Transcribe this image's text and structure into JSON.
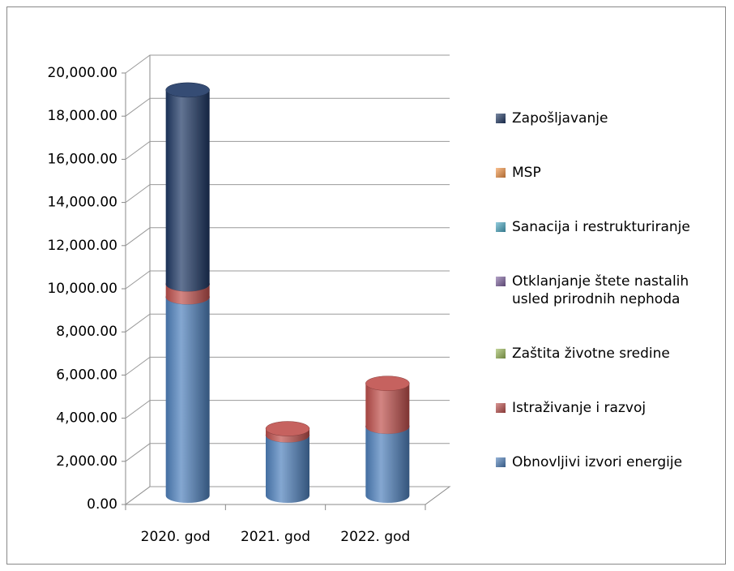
{
  "chart_data": {
    "type": "bar3d_stacked",
    "categories": [
      "2020. god",
      "2021. god",
      "2022. god"
    ],
    "series": [
      {
        "name": "Obnovljivi izvori energije",
        "color": "#4f81bd",
        "values": [
          9200,
          2800,
          3200
        ]
      },
      {
        "name": "Istraživanje i razvoj",
        "color": "#c0504d",
        "values": [
          600,
          300,
          2000
        ]
      },
      {
        "name": "Zaštita životne sredine",
        "color": "#9bbb59",
        "values": [
          0,
          0,
          0
        ]
      },
      {
        "name": "Otklanjanje štete nastalih usled prirodnih nephoda",
        "color": "#8064a2",
        "values": [
          0,
          0,
          0
        ]
      },
      {
        "name": "Sanacija i restrukturiranje",
        "color": "#4bacc6",
        "values": [
          0,
          0,
          0
        ]
      },
      {
        "name": "MSP",
        "color": "#f79646",
        "values": [
          0,
          0,
          0
        ]
      },
      {
        "name": "Zapošljavanje",
        "color": "#1f3864",
        "values": [
          9000,
          0,
          0
        ]
      }
    ],
    "ylim": [
      0,
      20000
    ],
    "yticks": [
      {
        "value": 0,
        "label": "0.00"
      },
      {
        "value": 2000,
        "label": "2,000.00"
      },
      {
        "value": 4000,
        "label": "4,000.00"
      },
      {
        "value": 6000,
        "label": "6,000.00"
      },
      {
        "value": 8000,
        "label": "8,000.00"
      },
      {
        "value": 10000,
        "label": "10,000.00"
      },
      {
        "value": 12000,
        "label": "12,000.00"
      },
      {
        "value": 14000,
        "label": "14,000.00"
      },
      {
        "value": 16000,
        "label": "16,000.00"
      },
      {
        "value": 18000,
        "label": "18,000.00"
      },
      {
        "value": 20000,
        "label": "20,000.00"
      }
    ],
    "grid": true,
    "legend": "right"
  }
}
